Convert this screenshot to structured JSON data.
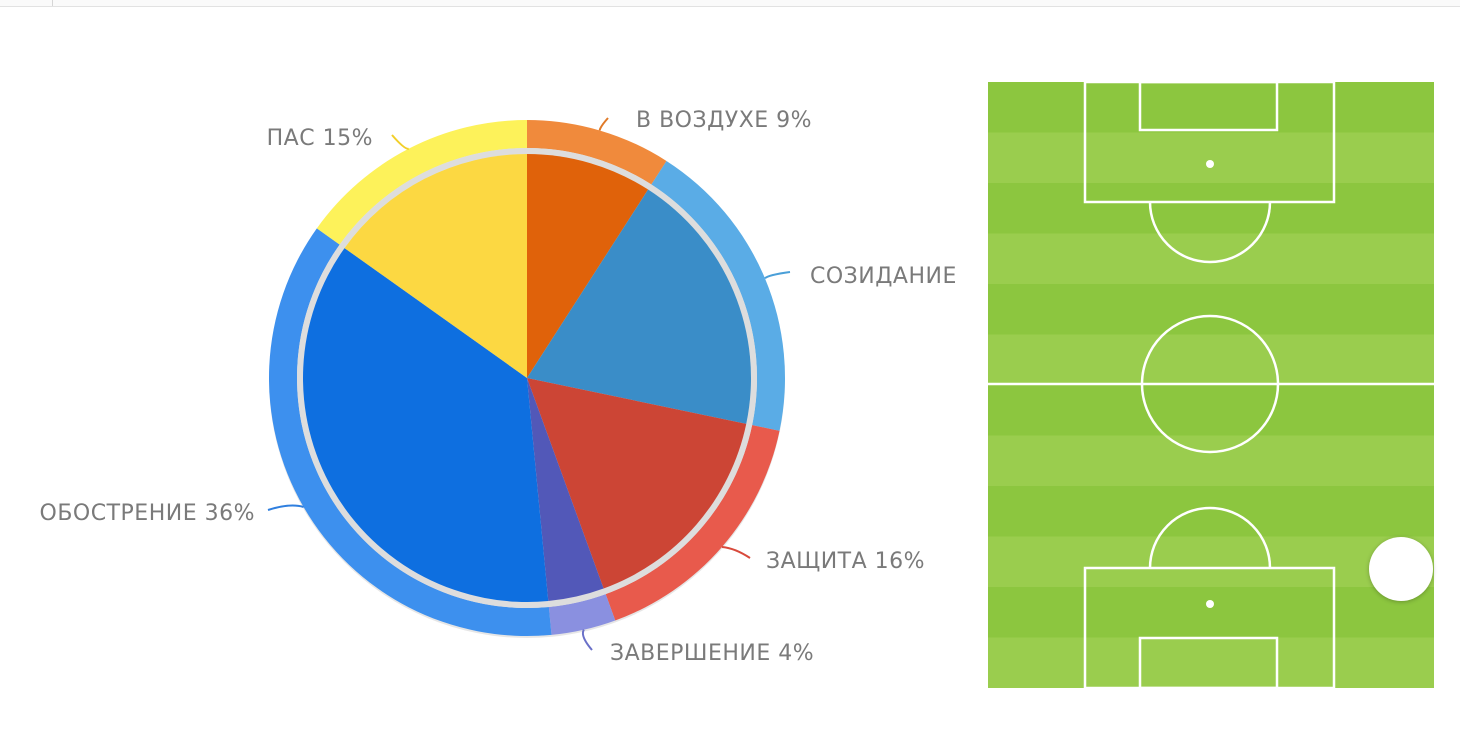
{
  "chart_data": {
    "type": "pie",
    "title": "",
    "slices": [
      {
        "label": "В ВОЗДУХЕ 9%",
        "value": 9,
        "color": "#e0620a",
        "ring_color": "#f08a3c",
        "leader_color": "#e07a28"
      },
      {
        "label": "СОЗИДАНИЕ",
        "value": 19,
        "color": "#3a8dc8",
        "ring_color": "#5aace6",
        "leader_color": "#4a9fd8"
      },
      {
        "label": "ЗАЩИТА 16%",
        "value": 16,
        "color": "#cc4535",
        "ring_color": "#e85a4c",
        "leader_color": "#d84a3c"
      },
      {
        "label": "ЗАВЕРШЕНИЕ 4%",
        "value": 4,
        "color": "#5258b8",
        "ring_color": "#8a90e0",
        "leader_color": "#6a70c8"
      },
      {
        "label": "ОБОСТРЕНИЕ 36%",
        "value": 36,
        "color": "#0e6fe0",
        "ring_color": "#3d90ee",
        "leader_color": "#2f7fdf"
      },
      {
        "label": "ПАС 15%",
        "value": 15,
        "color": "#fcd842",
        "ring_color": "#fdf25a",
        "leader_color": "#f2cf2a"
      }
    ]
  },
  "pitch": {
    "grass_color": "#8cc63f",
    "stripe_color": "#9acd4e",
    "line_color": "#ffffff"
  }
}
